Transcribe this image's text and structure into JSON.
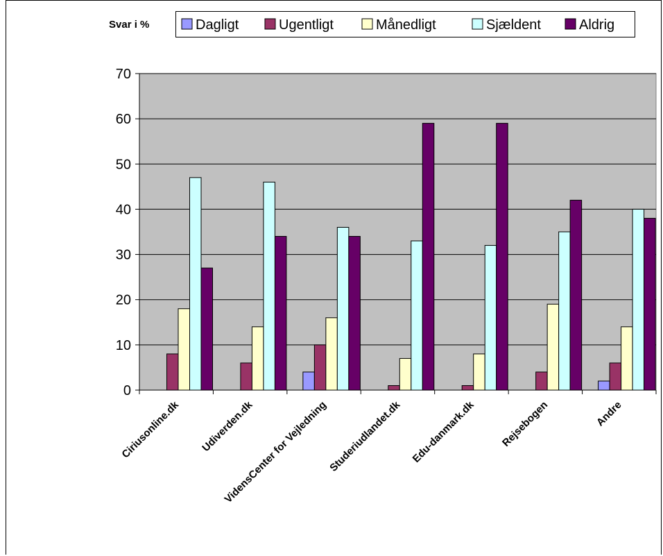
{
  "chart_data": {
    "type": "bar",
    "legend_title": "Svar i %",
    "legend_position": "top",
    "categories": [
      "Ciriusonline.dk",
      "Udiverden.dk",
      "VidensCenter for Vejledning",
      "Studeriudlandet.dk",
      "Edu-danmark.dk",
      "Rejsebogen",
      "Andre"
    ],
    "series": [
      {
        "name": "Dagligt",
        "color": "#9999ff",
        "values": [
          0,
          0,
          4,
          0,
          0,
          0,
          2
        ]
      },
      {
        "name": "Ugentligt",
        "color": "#993366",
        "values": [
          8,
          6,
          10,
          1,
          1,
          4,
          6
        ]
      },
      {
        "name": "Månedligt",
        "color": "#ffffcc",
        "values": [
          18,
          14,
          16,
          7,
          8,
          19,
          14
        ]
      },
      {
        "name": "Sjældent",
        "color": "#ccffff",
        "values": [
          47,
          46,
          36,
          33,
          32,
          35,
          40
        ]
      },
      {
        "name": "Aldrig",
        "color": "#660066",
        "values": [
          27,
          34,
          34,
          59,
          59,
          42,
          38
        ]
      }
    ],
    "ylim": [
      0,
      70
    ],
    "yticks": [
      0,
      10,
      20,
      30,
      40,
      50,
      60,
      70
    ],
    "grid": true,
    "plot_background": "#c0c0c0"
  }
}
